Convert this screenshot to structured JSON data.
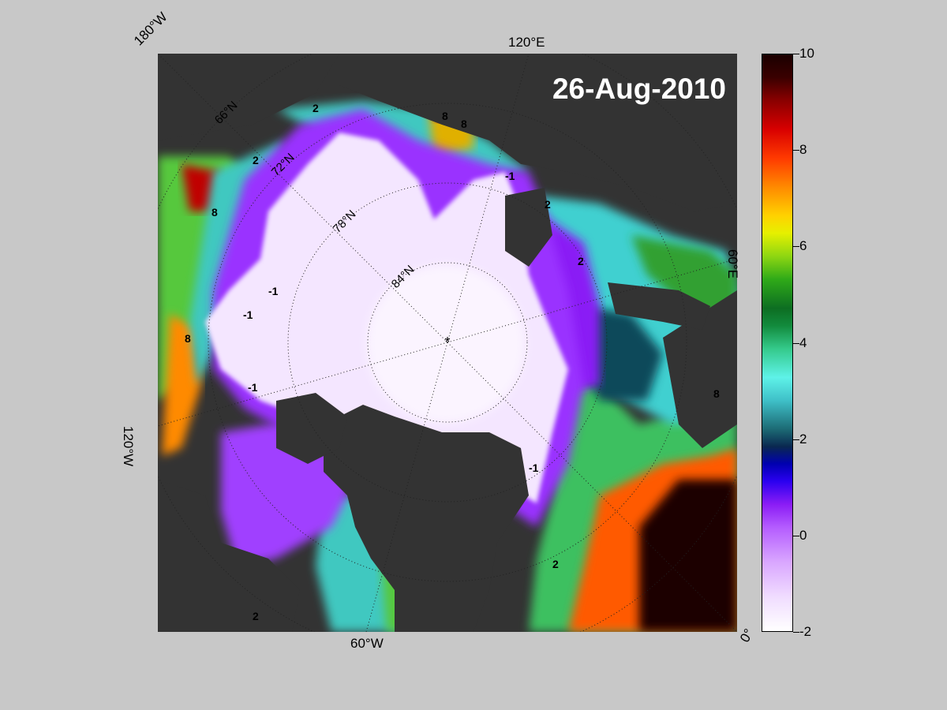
{
  "map": {
    "date": "26-Aug-2010",
    "longitude_labels": {
      "w180": "180°W",
      "e120": "120°E",
      "e60": "60°E",
      "w120": "120°W",
      "w60": "60°W",
      "zero": "0°"
    },
    "latitude_labels": {
      "lat66": "66°N",
      "lat72": "72°N",
      "lat78": "78°N",
      "lat84": "84°N"
    },
    "contour_labels": [
      "-1",
      "-1",
      "-1",
      "-1",
      "-1",
      "2",
      "2",
      "2",
      "2",
      "2",
      "2",
      "8",
      "8",
      "8",
      "8",
      "8"
    ]
  },
  "colorbar": {
    "min": -2,
    "max": 10,
    "tick_labels": [
      "10",
      "8",
      "6",
      "4",
      "2",
      "0",
      "-2"
    ],
    "tick_values": [
      10,
      8,
      6,
      4,
      2,
      0,
      -2
    ],
    "colors": {
      "min_color": "#ffffff",
      "ice_color": "#f0dcff",
      "zero_color": "#8a1cf5",
      "two_color": "#1c6a74",
      "four_color": "#3fc0c8",
      "six_color": "#2faa18",
      "eight_color": "#ff8a00",
      "max_color": "#1a0000"
    }
  }
}
